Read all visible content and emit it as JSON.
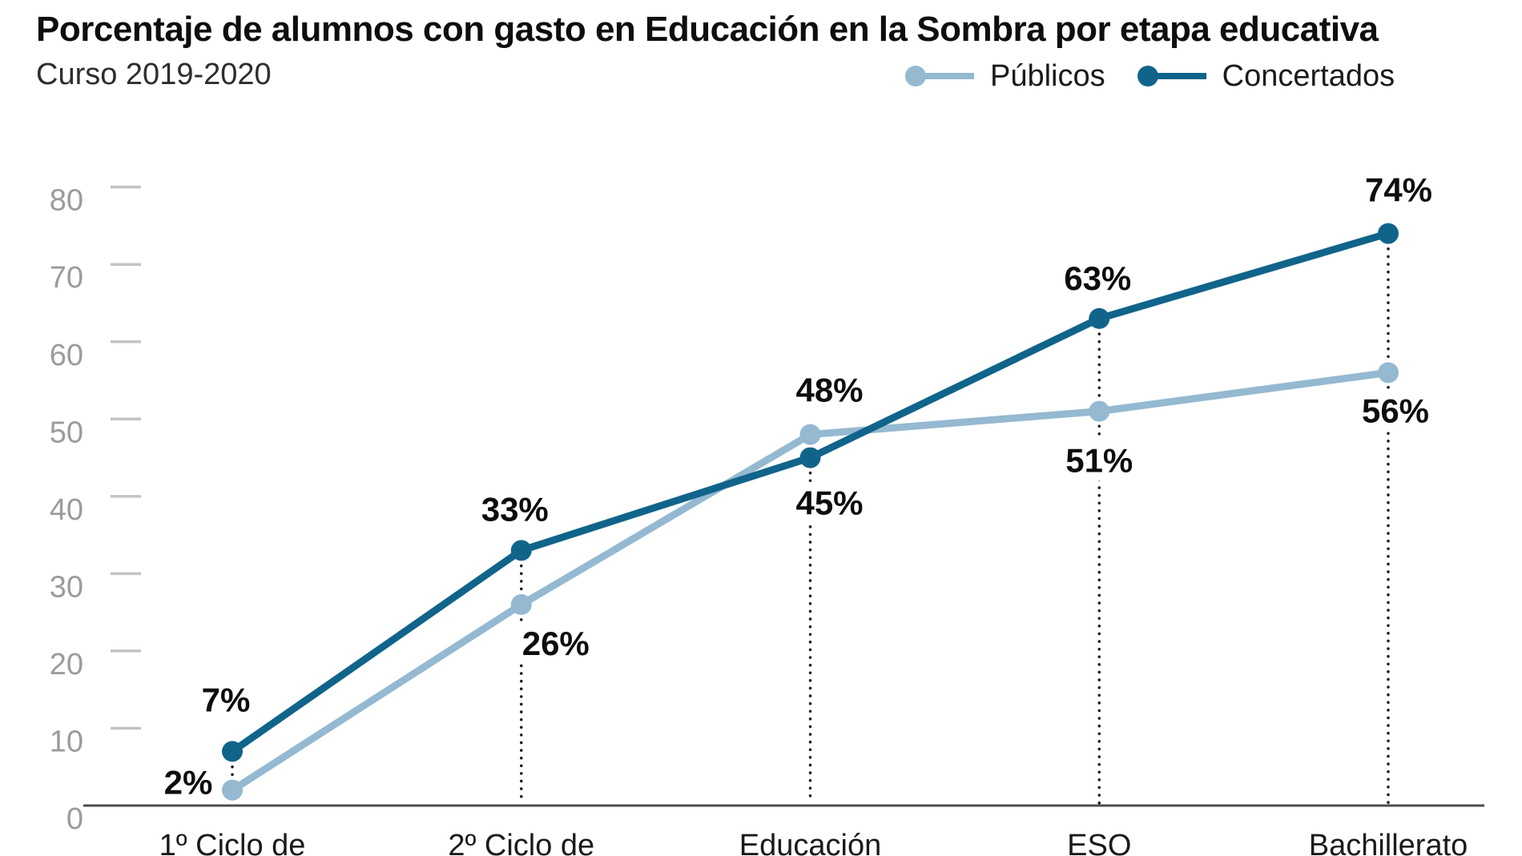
{
  "header": {
    "title": "Porcentaje de alumnos con gasto en Educación en la Sombra por etapa educativa",
    "subtitle": "Curso 2019-2020"
  },
  "legend": {
    "items": [
      {
        "label": "Públicos",
        "color": "#94b9d1"
      },
      {
        "label": "Concertados",
        "color": "#10648a"
      }
    ]
  },
  "chart_data": {
    "type": "line",
    "title": "Porcentaje de alumnos con gasto en Educación en la Sombra por etapa educativa",
    "subtitle": "Curso 2019-2020",
    "categories": [
      "1º Ciclo de",
      "2º Ciclo de",
      "Educación",
      "ESO",
      "Bachillerato"
    ],
    "series": [
      {
        "name": "Públicos",
        "color": "#94b9d1",
        "values": [
          2,
          26,
          48,
          51,
          56
        ],
        "labels": [
          "2%",
          "26%",
          "48%",
          "51%",
          "56%"
        ],
        "label_offsets": [
          [
            -55,
            -10
          ],
          [
            43,
            48
          ],
          [
            24,
            -56
          ],
          [
            0,
            61
          ],
          [
            9,
            47
          ]
        ]
      },
      {
        "name": "Concertados",
        "color": "#10648a",
        "values": [
          7,
          33,
          45,
          63,
          74
        ],
        "labels": [
          "7%",
          "33%",
          "45%",
          "63%",
          "74%"
        ],
        "label_offsets": [
          [
            -8,
            -65
          ],
          [
            -8,
            -52
          ],
          [
            24,
            56
          ],
          [
            -2,
            -51
          ],
          [
            13,
            -55
          ]
        ]
      }
    ],
    "yticks": [
      0,
      10,
      20,
      30,
      40,
      50,
      60,
      70,
      80
    ],
    "ylim": [
      0,
      84
    ],
    "xlabel": "",
    "ylabel": "",
    "grid": false,
    "legend_position": "top-right",
    "colors": {
      "axis": "#4d4d4d",
      "tick": "#c3c3c3",
      "ytick_label": "#9b9b9b",
      "xtick_label": "#1a1a1a",
      "data_label": "#0d0d0d",
      "guide_dots": "#1a1a1a"
    }
  }
}
